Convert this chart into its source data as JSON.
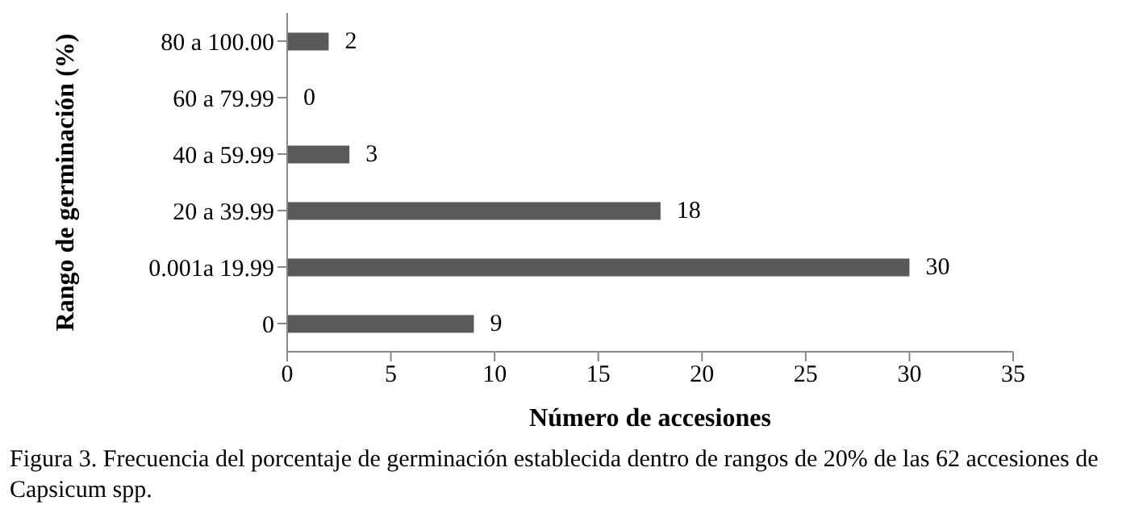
{
  "chart_data": {
    "type": "bar",
    "orientation": "horizontal",
    "xlabel": "Número de accesiones",
    "ylabel": "Rango de germinación (%)",
    "categories": [
      "80 a 100.00",
      "60 a 79.99",
      "40 a 59.99",
      "20 a 39.99",
      "0.001a 19.99",
      "0"
    ],
    "values": [
      2,
      0,
      3,
      18,
      30,
      9
    ],
    "color": "#595959",
    "data_labels": true,
    "grid": false,
    "legend": false,
    "xlim": [
      0,
      35
    ],
    "xticks": [
      0,
      5,
      10,
      15,
      20,
      25,
      30,
      35
    ],
    "annotations": [
      "Figura 3. Frecuencia del porcentaje de germinación establecida dentro de rangos  de 20% de las  62 accesiones de Capsicum spp."
    ]
  }
}
